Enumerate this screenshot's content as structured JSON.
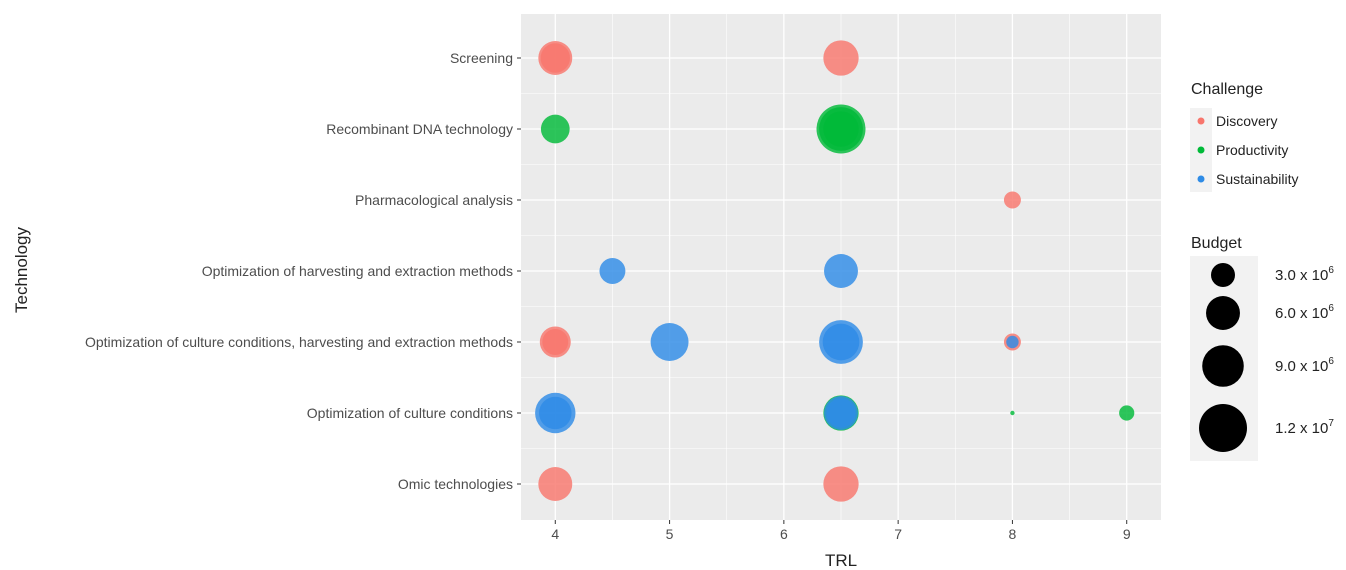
{
  "chart_data": {
    "type": "scatter",
    "xlabel": "TRL",
    "ylabel": "Technology",
    "xlim": [
      3.7,
      9.3
    ],
    "x_ticks": [
      "4",
      "5",
      "6",
      "7",
      "8",
      "9"
    ],
    "grid": true,
    "legend_placement": "right",
    "categories": [
      "Omic technologies",
      "Optimization of culture conditions",
      "Optimization of culture conditions, harvesting and extraction methods",
      "Optimization of harvesting and extraction methods",
      "Pharmacological analysis",
      "Recombinant DNA technology",
      "Screening"
    ],
    "color_legend": {
      "title": "Challenge",
      "items": [
        {
          "name": "Discovery",
          "color": "#F8766D"
        },
        {
          "name": "Productivity",
          "color": "#00BA38"
        },
        {
          "name": "Sustainability",
          "color": "#2E8BE6"
        }
      ]
    },
    "size_legend": {
      "title": "Budget",
      "items": [
        {
          "value": 3000000,
          "mantissa": "3.0",
          "exponent": "6"
        },
        {
          "value": 6000000,
          "mantissa": "6.0",
          "exponent": "6"
        },
        {
          "value": 9000000,
          "mantissa": "9.0",
          "exponent": "6"
        },
        {
          "value": 12000000,
          "mantissa": "1.2",
          "exponent": "7"
        }
      ]
    },
    "points": [
      {
        "technology": "Screening",
        "trl": 4,
        "challenge": "Discovery",
        "budget": 6000000
      },
      {
        "technology": "Screening",
        "trl": 4,
        "challenge": "Discovery",
        "budget": 4500000
      },
      {
        "technology": "Screening",
        "trl": 6.5,
        "challenge": "Discovery",
        "budget": 6500000
      },
      {
        "technology": "Recombinant DNA technology",
        "trl": 4,
        "challenge": "Productivity",
        "budget": 4300000
      },
      {
        "technology": "Recombinant DNA technology",
        "trl": 6.5,
        "challenge": "Productivity",
        "budget": 12500000
      },
      {
        "technology": "Recombinant DNA technology",
        "trl": 6.5,
        "challenge": "Productivity",
        "budget": 10000000
      },
      {
        "technology": "Recombinant DNA technology",
        "trl": 6.5,
        "challenge": "Productivity",
        "budget": 6500000
      },
      {
        "technology": "Pharmacological analysis",
        "trl": 8,
        "challenge": "Discovery",
        "budget": 1500000
      },
      {
        "technology": "Optimization of harvesting and extraction methods",
        "trl": 4.5,
        "challenge": "Sustainability",
        "budget": 3500000
      },
      {
        "technology": "Optimization of harvesting and extraction methods",
        "trl": 6.5,
        "challenge": "Sustainability",
        "budget": 6000000
      },
      {
        "technology": "Optimization of culture conditions, harvesting and extraction methods",
        "trl": 4,
        "challenge": "Discovery",
        "budget": 5000000
      },
      {
        "technology": "Optimization of culture conditions, harvesting and extraction methods",
        "trl": 4,
        "challenge": "Discovery",
        "budget": 3500000
      },
      {
        "technology": "Optimization of culture conditions, harvesting and extraction methods",
        "trl": 5,
        "challenge": "Sustainability",
        "budget": 7500000
      },
      {
        "technology": "Optimization of culture conditions, harvesting and extraction methods",
        "trl": 6.5,
        "challenge": "Sustainability",
        "budget": 10000000
      },
      {
        "technology": "Optimization of culture conditions, harvesting and extraction methods",
        "trl": 6.5,
        "challenge": "Sustainability",
        "budget": 7000000
      },
      {
        "technology": "Optimization of culture conditions, harvesting and extraction methods",
        "trl": 8,
        "challenge": "Discovery",
        "budget": 1500000
      },
      {
        "technology": "Optimization of culture conditions, harvesting and extraction methods",
        "trl": 8,
        "challenge": "Sustainability",
        "budget": 800000
      },
      {
        "technology": "Optimization of culture conditions",
        "trl": 4,
        "challenge": "Sustainability",
        "budget": 8500000
      },
      {
        "technology": "Optimization of culture conditions",
        "trl": 4,
        "challenge": "Sustainability",
        "budget": 5500000
      },
      {
        "technology": "Optimization of culture conditions",
        "trl": 6.5,
        "challenge": "Productivity",
        "budget": 6500000
      },
      {
        "technology": "Optimization of culture conditions",
        "trl": 6.5,
        "challenge": "Sustainability",
        "budget": 6000000
      },
      {
        "technology": "Optimization of culture conditions",
        "trl": 6.5,
        "challenge": "Sustainability",
        "budget": 4500000
      },
      {
        "technology": "Optimization of culture conditions",
        "trl": 8,
        "challenge": "Productivity",
        "budget": 100000
      },
      {
        "technology": "Optimization of culture conditions",
        "trl": 9,
        "challenge": "Productivity",
        "budget": 1200000
      },
      {
        "technology": "Omic technologies",
        "trl": 4,
        "challenge": "Discovery",
        "budget": 6000000
      },
      {
        "technology": "Omic technologies",
        "trl": 6.5,
        "challenge": "Discovery",
        "budget": 6500000
      }
    ]
  }
}
